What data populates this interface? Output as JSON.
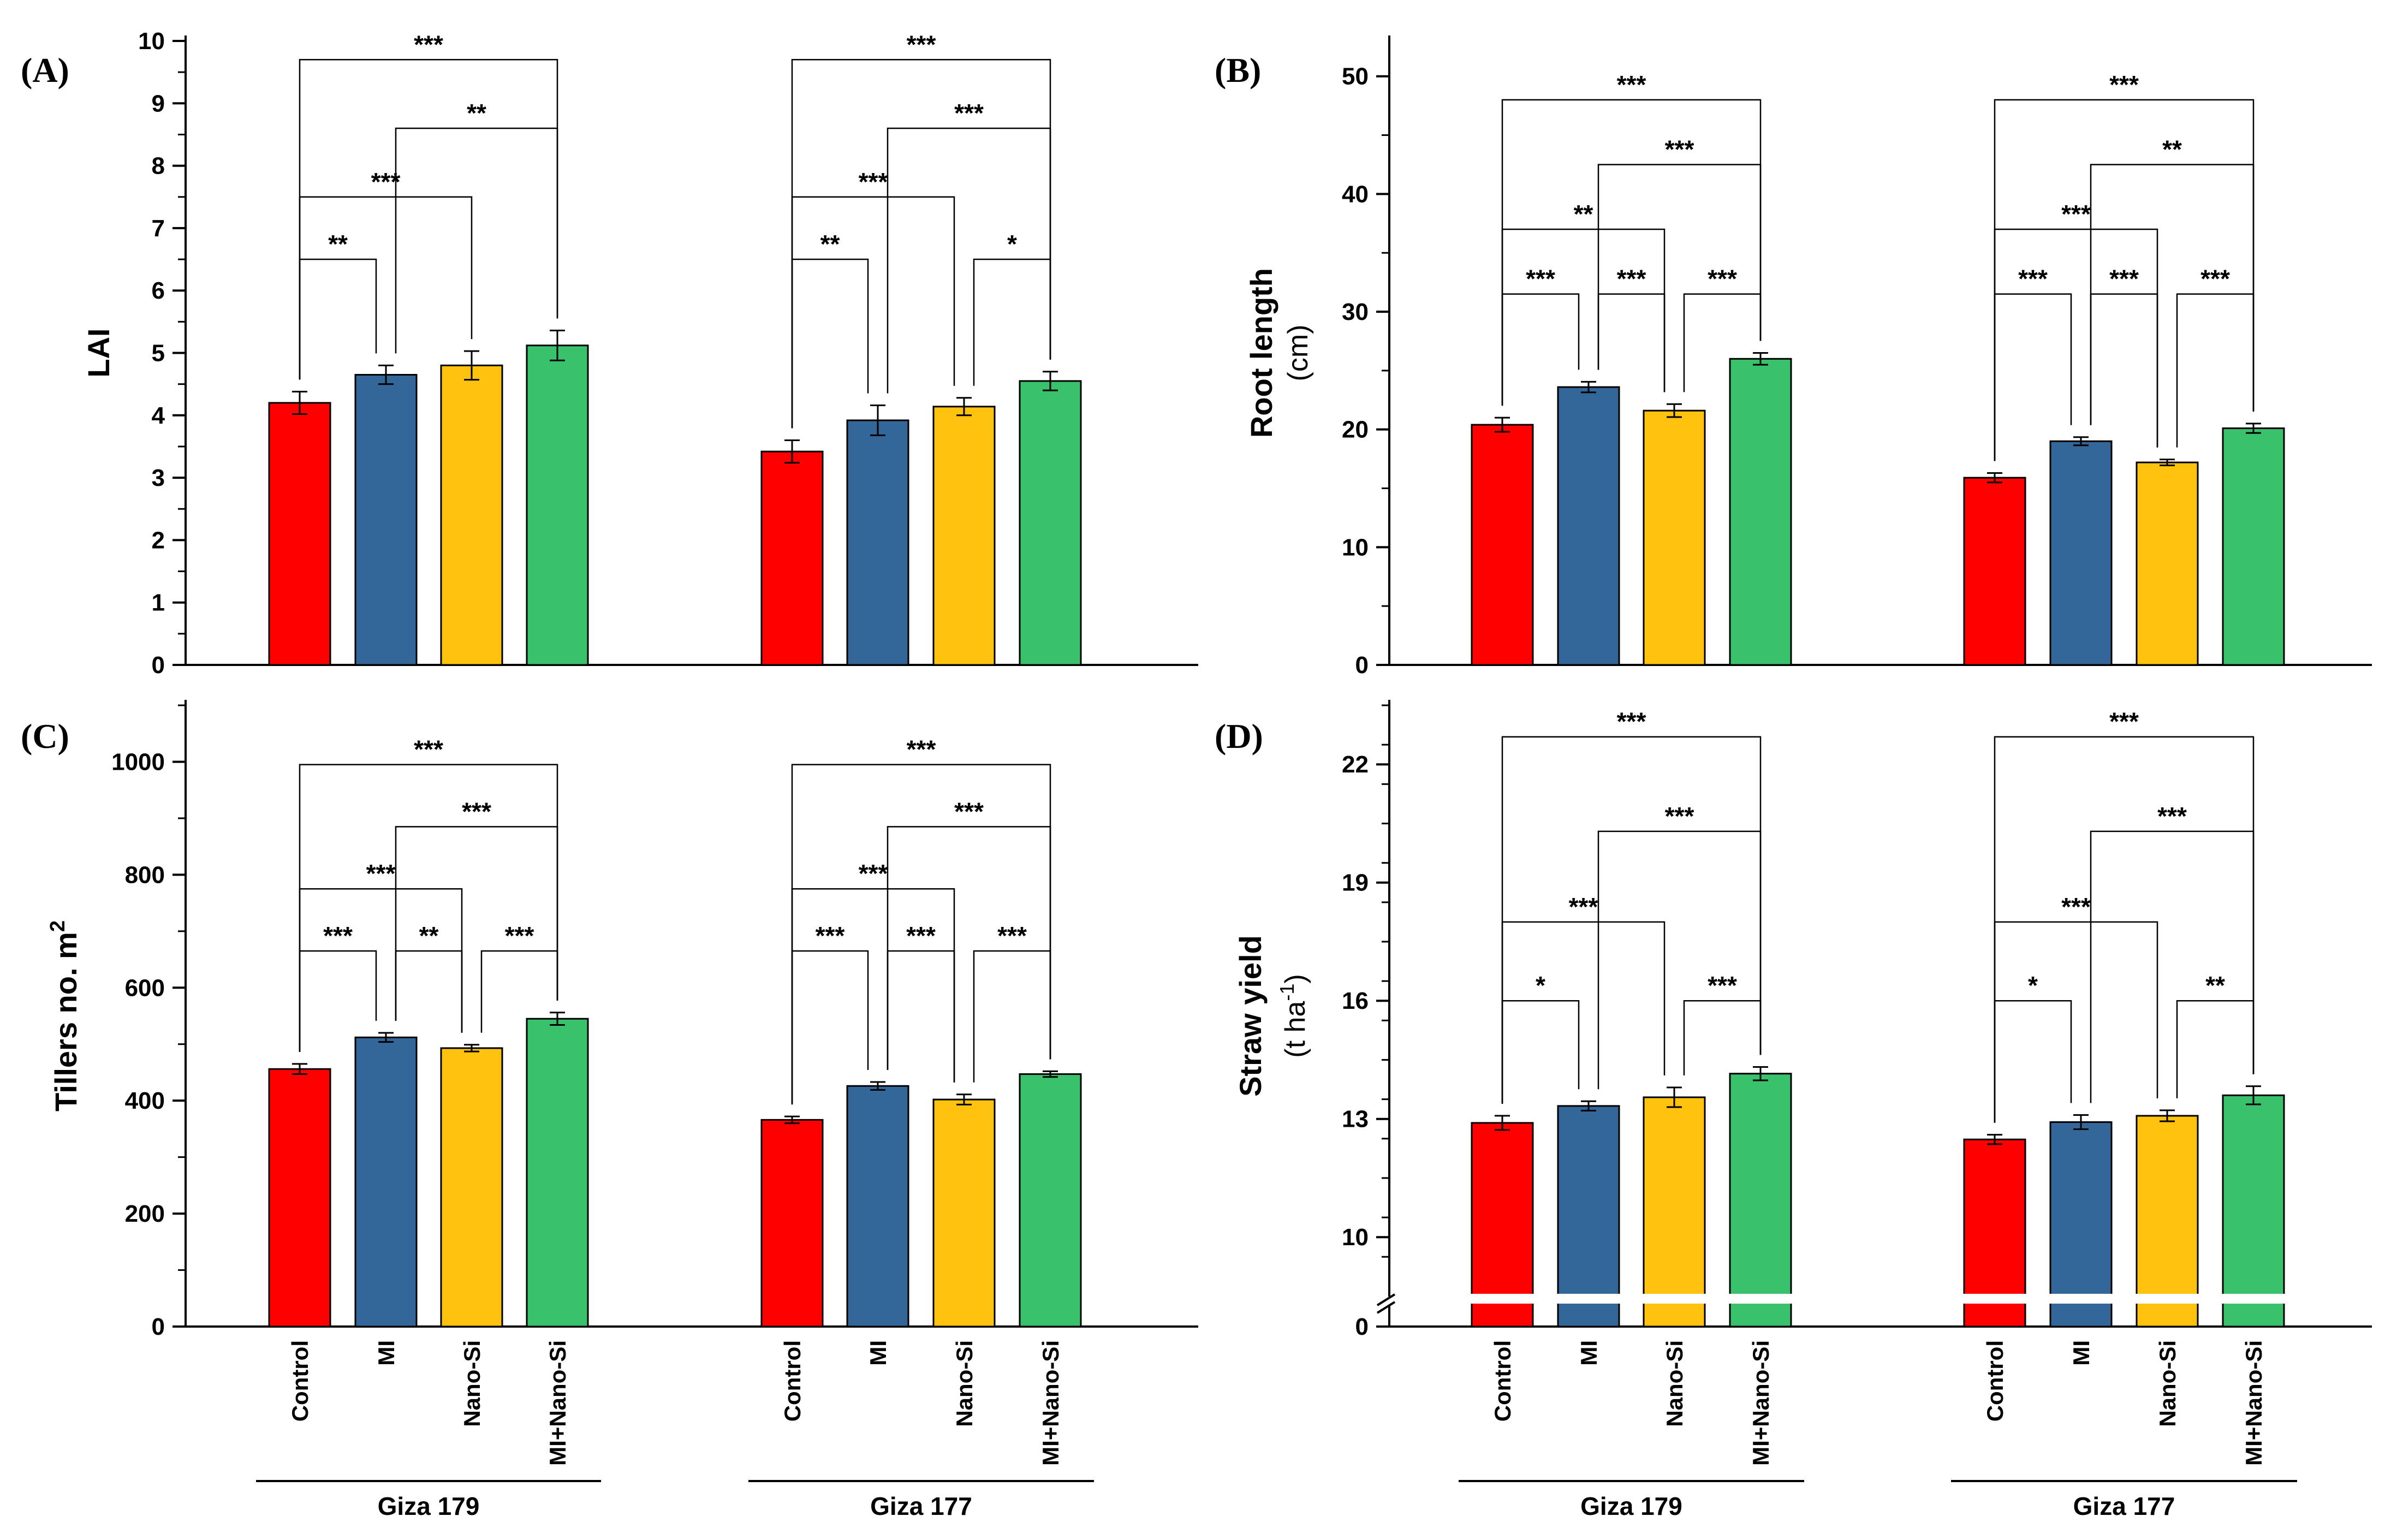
{
  "chart_data": [
    {
      "id": "A",
      "panel_label": "(A)",
      "type": "bar",
      "ylabel": "LAI",
      "ylabel_sub": "",
      "ylim": [
        0,
        10
      ],
      "yticks": [
        0,
        1,
        2,
        3,
        4,
        5,
        6,
        7,
        8,
        9,
        10
      ],
      "ytick_labels": [
        "0",
        "1",
        "2",
        "3",
        "4",
        "5",
        "6",
        "7",
        "8",
        "9",
        "10"
      ],
      "categories": [
        "Control",
        "MI",
        "Nano-Si",
        "MI+Nano-Si"
      ],
      "groups": [
        {
          "name": "Giza 179",
          "values": [
            4.2,
            4.65,
            4.8,
            5.12
          ],
          "errors": [
            0.18,
            0.15,
            0.23,
            0.24
          ],
          "sig": [
            {
              "from": 0,
              "to": 1,
              "label": "**",
              "level": 6.5
            },
            {
              "from": 0,
              "to": 2,
              "label": "***",
              "level": 7.5
            },
            {
              "from": 1,
              "to": 3,
              "label": "**",
              "level": 8.6
            },
            {
              "from": 0,
              "to": 3,
              "label": "***",
              "level": 9.7
            }
          ]
        },
        {
          "name": "Giza 177",
          "values": [
            3.42,
            3.92,
            4.14,
            4.55
          ],
          "errors": [
            0.18,
            0.24,
            0.14,
            0.15
          ],
          "sig": [
            {
              "from": 0,
              "to": 1,
              "label": "**",
              "level": 6.5
            },
            {
              "from": 2,
              "to": 3,
              "label": "*",
              "level": 6.5
            },
            {
              "from": 0,
              "to": 2,
              "label": "***",
              "level": 7.5
            },
            {
              "from": 1,
              "to": 3,
              "label": "***",
              "level": 8.6
            },
            {
              "from": 0,
              "to": 3,
              "label": "***",
              "level": 9.7
            }
          ]
        }
      ]
    },
    {
      "id": "B",
      "panel_label": "(B)",
      "type": "bar",
      "ylabel": "Root length",
      "ylabel_sub": "(cm)",
      "ylim": [
        0,
        53
      ],
      "yticks": [
        0,
        10,
        20,
        30,
        40,
        50
      ],
      "ytick_labels": [
        "0",
        "10",
        "20",
        "30",
        "40",
        "50"
      ],
      "categories": [
        "Control",
        "MI",
        "Nano-Si",
        "MI+Nano-Si"
      ],
      "groups": [
        {
          "name": "Giza 179",
          "values": [
            20.4,
            23.6,
            21.6,
            26.0
          ],
          "errors": [
            0.6,
            0.45,
            0.55,
            0.5
          ],
          "sig": [
            {
              "from": 0,
              "to": 1,
              "label": "***",
              "level": 31.5
            },
            {
              "from": 1,
              "to": 2,
              "label": "***",
              "level": 31.5
            },
            {
              "from": 2,
              "to": 3,
              "label": "***",
              "level": 31.5
            },
            {
              "from": 0,
              "to": 2,
              "label": "**",
              "level": 37.0
            },
            {
              "from": 1,
              "to": 3,
              "label": "***",
              "level": 42.5
            },
            {
              "from": 0,
              "to": 3,
              "label": "***",
              "level": 48.0
            }
          ]
        },
        {
          "name": "Giza 177",
          "values": [
            15.9,
            19.0,
            17.2,
            20.1
          ],
          "errors": [
            0.4,
            0.35,
            0.25,
            0.4
          ],
          "sig": [
            {
              "from": 0,
              "to": 1,
              "label": "***",
              "level": 31.5
            },
            {
              "from": 1,
              "to": 2,
              "label": "***",
              "level": 31.5
            },
            {
              "from": 2,
              "to": 3,
              "label": "***",
              "level": 31.5
            },
            {
              "from": 0,
              "to": 2,
              "label": "***",
              "level": 37.0
            },
            {
              "from": 1,
              "to": 3,
              "label": "**",
              "level": 42.5
            },
            {
              "from": 0,
              "to": 3,
              "label": "***",
              "level": 48.0
            }
          ]
        }
      ]
    },
    {
      "id": "C",
      "panel_label": "(C)",
      "type": "bar",
      "ylabel": "Tillers no. m",
      "ylabel_sup": "2",
      "ylabel_sub": "",
      "ylim": [
        0,
        1100
      ],
      "yticks": [
        0,
        200,
        400,
        600,
        800,
        1000
      ],
      "ytick_labels": [
        "0",
        "200",
        "400",
        "600",
        "800",
        "1000"
      ],
      "categories": [
        "Control",
        "MI",
        "Nano-Si",
        "MI+Nano-Si"
      ],
      "groups": [
        {
          "name": "Giza 179",
          "values": [
            456,
            512,
            493,
            545
          ],
          "errors": [
            9,
            8,
            6,
            11
          ],
          "sig": [
            {
              "from": 0,
              "to": 1,
              "label": "***",
              "level": 665
            },
            {
              "from": 1,
              "to": 2,
              "label": "**",
              "level": 665
            },
            {
              "from": 2,
              "to": 3,
              "label": "***",
              "level": 665
            },
            {
              "from": 0,
              "to": 2,
              "label": "***",
              "level": 775
            },
            {
              "from": 1,
              "to": 3,
              "label": "***",
              "level": 885
            },
            {
              "from": 0,
              "to": 3,
              "label": "***",
              "level": 995
            }
          ]
        },
        {
          "name": "Giza 177",
          "values": [
            366,
            426,
            402,
            447
          ],
          "errors": [
            6,
            7,
            9,
            5
          ],
          "sig": [
            {
              "from": 0,
              "to": 1,
              "label": "***",
              "level": 665
            },
            {
              "from": 1,
              "to": 2,
              "label": "***",
              "level": 665
            },
            {
              "from": 2,
              "to": 3,
              "label": "***",
              "level": 665
            },
            {
              "from": 0,
              "to": 2,
              "label": "***",
              "level": 775
            },
            {
              "from": 1,
              "to": 3,
              "label": "***",
              "level": 885
            },
            {
              "from": 0,
              "to": 3,
              "label": "***",
              "level": 995
            }
          ]
        }
      ],
      "group_names": [
        "Giza 179",
        "Giza 177"
      ]
    },
    {
      "id": "D",
      "panel_label": "(D)",
      "type": "bar",
      "ylabel": "Straw yield",
      "ylabel_sub": "(t ha",
      "ylabel_sub_sup": "-1",
      "ylabel_sub_end": ")",
      "axis_break": true,
      "ylim": [
        8.7,
        23.5
      ],
      "yticks": [
        10,
        13,
        16,
        19,
        22
      ],
      "ytick_labels": [
        "0",
        "10",
        "13",
        "16",
        "19",
        "22"
      ],
      "categories": [
        "Control",
        "MI",
        "Nano-Si",
        "MI+Nano-Si"
      ],
      "groups": [
        {
          "name": "Giza 179",
          "values": [
            12.9,
            13.33,
            13.55,
            14.15
          ],
          "errors": [
            0.18,
            0.12,
            0.25,
            0.17
          ],
          "sig": [
            {
              "from": 0,
              "to": 1,
              "label": "*",
              "level": 16.0
            },
            {
              "from": 2,
              "to": 3,
              "label": "***",
              "level": 16.0
            },
            {
              "from": 0,
              "to": 2,
              "label": "***",
              "level": 18.0
            },
            {
              "from": 1,
              "to": 3,
              "label": "***",
              "level": 20.3
            },
            {
              "from": 0,
              "to": 3,
              "label": "***",
              "level": 22.7
            }
          ]
        },
        {
          "name": "Giza 177",
          "values": [
            12.48,
            12.92,
            13.08,
            13.6
          ],
          "errors": [
            0.12,
            0.18,
            0.14,
            0.23
          ],
          "sig": [
            {
              "from": 0,
              "to": 1,
              "label": "*",
              "level": 16.0
            },
            {
              "from": 2,
              "to": 3,
              "label": "**",
              "level": 16.0
            },
            {
              "from": 0,
              "to": 2,
              "label": "***",
              "level": 18.0
            },
            {
              "from": 1,
              "to": 3,
              "label": "***",
              "level": 20.3
            },
            {
              "from": 0,
              "to": 3,
              "label": "***",
              "level": 22.7
            }
          ]
        }
      ],
      "group_names": [
        "Giza 179",
        "Giza 177"
      ]
    }
  ],
  "colors": {
    "Control": "#ff0000",
    "MI": "#336699",
    "Nano-Si": "#ffc20e",
    "MI+Nano-Si": "#39c16b",
    "axis": "#000000"
  }
}
